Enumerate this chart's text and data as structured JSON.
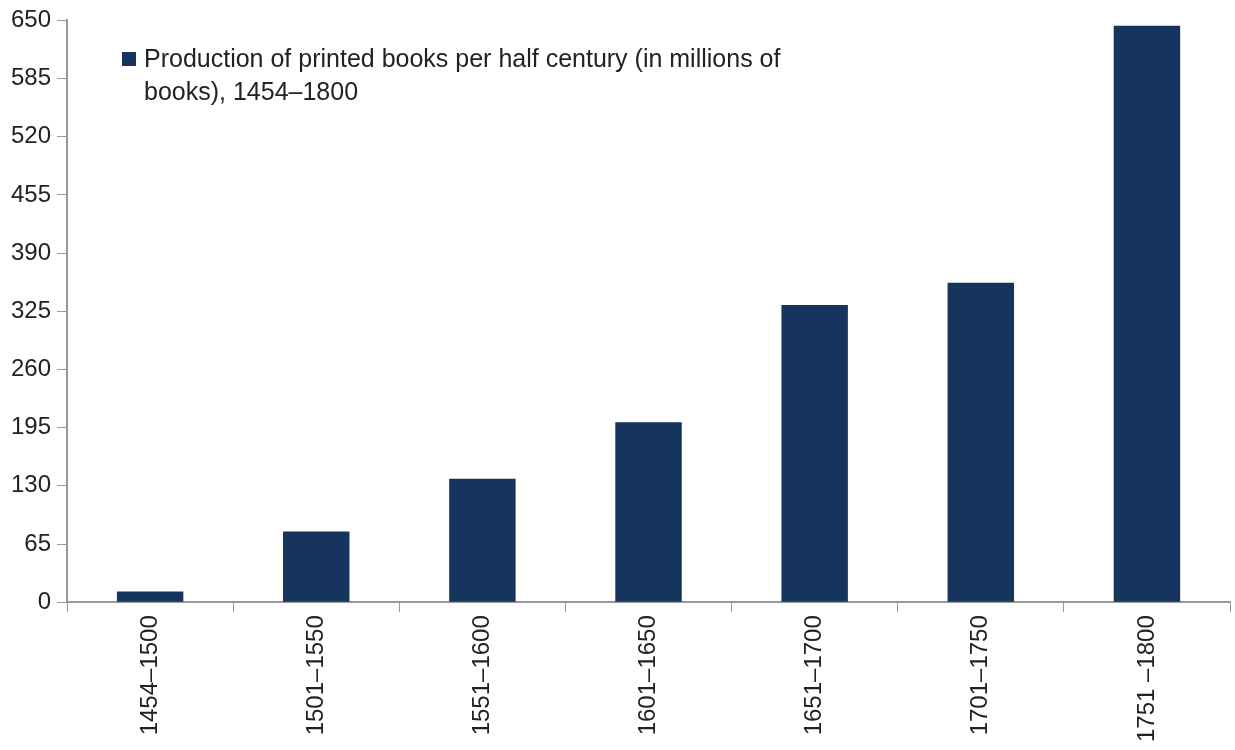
{
  "chart_data": {
    "type": "bar",
    "categories": [
      "1454–1500",
      "1501–1550",
      "1551–1600",
      "1601–1650",
      "1651–1700",
      "1701–1750",
      "1751 –1800"
    ],
    "series": [
      {
        "name": "Production of printed books per half century (in millions of books), 1454–1800",
        "color": "#15355e",
        "values": [
          12,
          79,
          138,
          201,
          332,
          357,
          644
        ]
      }
    ],
    "ylim": [
      0,
      650
    ],
    "yticks": [
      0,
      65,
      130,
      195,
      260,
      325,
      390,
      455,
      520,
      585,
      650
    ],
    "grid": false,
    "legend": "top left"
  }
}
